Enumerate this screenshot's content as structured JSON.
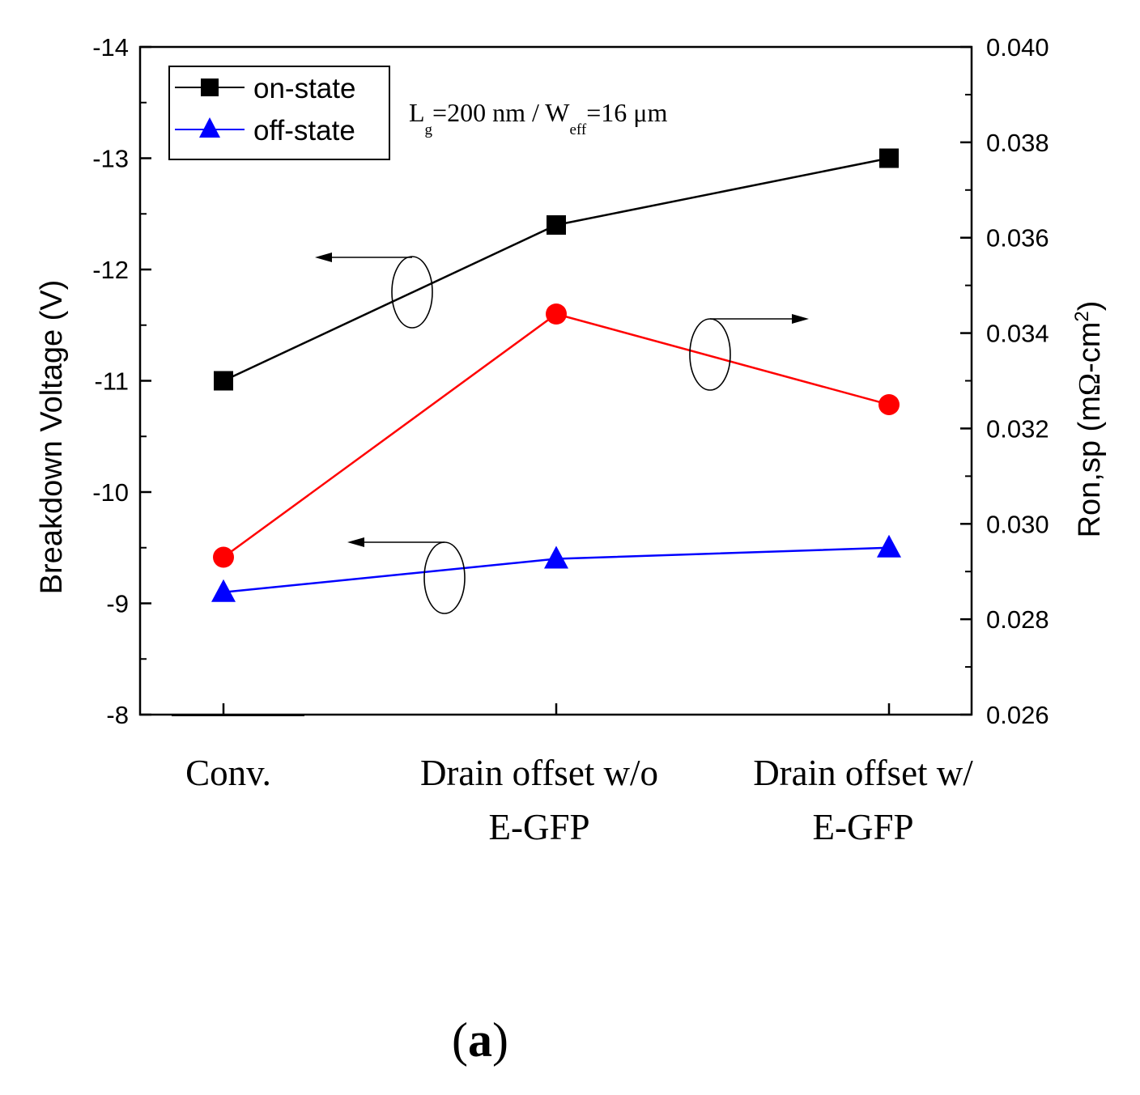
{
  "chart_data": {
    "type": "line",
    "categories": [
      "Conv.",
      "Drain offset w/o E-GFP",
      "Drain offset w/ E-GFP"
    ],
    "category_lines": [
      [
        "Conv."
      ],
      [
        "Drain offset w/o",
        "E-GFP"
      ],
      [
        "Drain offset w/",
        "E-GFP"
      ]
    ],
    "left_axis": {
      "title": "Breakdown Voltage (V)",
      "ylim": [
        -8,
        -14
      ],
      "ticks": [
        -14,
        -13,
        -12,
        -11,
        -10,
        -9,
        -8
      ],
      "tick_labels": [
        "-14",
        "-13",
        "-12",
        "-11",
        "-10",
        "-9",
        "-8"
      ]
    },
    "right_axis": {
      "title_main": "Ron,sp (m",
      "title_omega": "Ω",
      "title_rest": "-cm",
      "title_sup": "2",
      "title_close": ")",
      "ylim": [
        0.026,
        0.04
      ],
      "ticks": [
        0.026,
        0.028,
        0.03,
        0.032,
        0.034,
        0.036,
        0.038,
        0.04
      ],
      "tick_labels": [
        "0.026",
        "0.028",
        "0.030",
        "0.032",
        "0.034",
        "0.036",
        "0.038",
        "0.040"
      ]
    },
    "series": [
      {
        "name": "on-state",
        "axis": "left",
        "marker": "square",
        "color": "#000000",
        "values": [
          -11.0,
          -12.4,
          -13.0
        ]
      },
      {
        "name": "off-state",
        "axis": "left",
        "marker": "triangle",
        "color": "#0000ff",
        "values": [
          -9.1,
          -9.4,
          -9.5
        ]
      },
      {
        "axis": "right",
        "marker": "circle",
        "color": "#ff0000",
        "values": [
          0.0293,
          0.0344,
          0.0325
        ]
      }
    ],
    "legend_position": "top-left",
    "grid": false,
    "annotation": {
      "L": "L",
      "L_sub": "g",
      "mid": "=200 nm / W",
      "W_sub": "eff",
      "end": "=16 μm"
    },
    "panel_label": {
      "open": "(",
      "letter": "a",
      "close": ")"
    }
  }
}
